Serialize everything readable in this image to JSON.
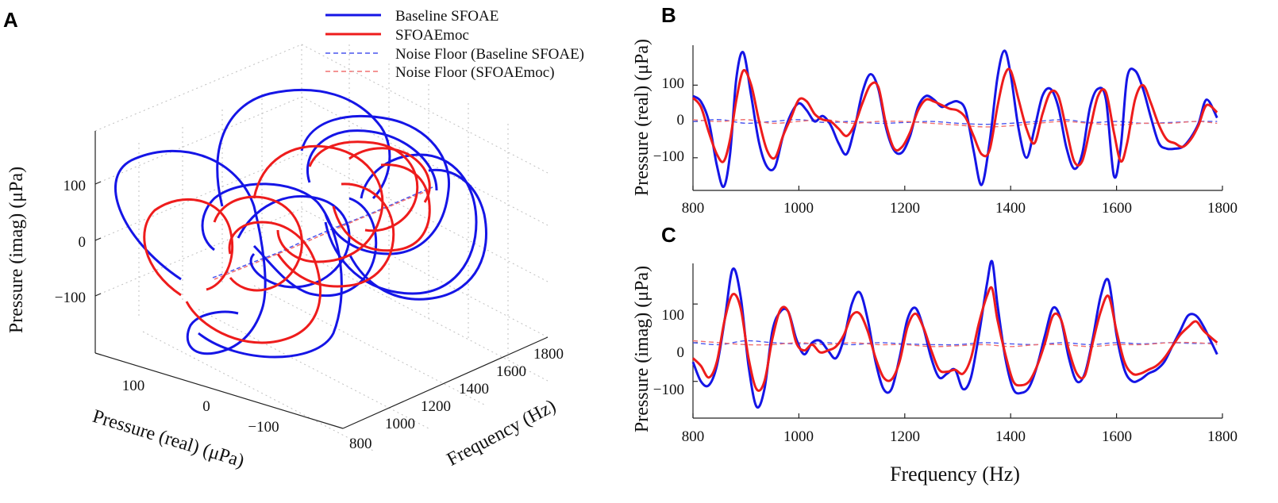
{
  "colors": {
    "baseline": "#1515e6",
    "moc": "#ee1c1c",
    "baseline_noise": "#4a55ee",
    "moc_noise": "#f07070",
    "axis": "#222222",
    "grid": "#c8c8c8"
  },
  "legend": {
    "items": [
      {
        "label": "Baseline SFOAE",
        "style": "solid",
        "color_key": "baseline"
      },
      {
        "label": "SFOAEmoc",
        "style": "solid",
        "color_key": "moc"
      },
      {
        "label": "Noise Floor (Baseline SFOAE)",
        "style": "dashed",
        "color_key": "baseline_noise"
      },
      {
        "label": "Noise Floor (SFOAEmoc)",
        "style": "dashed",
        "color_key": "moc_noise"
      }
    ]
  },
  "chart_data": [
    {
      "panel": "A",
      "type": "line3d",
      "zlabel": "Pressure (imag) (μPa)",
      "xlabel": "Pressure (real) (μPa)",
      "ylabel": "Frequency (Hz)",
      "z_ticks": [
        "100",
        "0",
        "−100"
      ],
      "x_ticks": [
        "100",
        "0",
        "−100"
      ],
      "y_ticks": [
        "800",
        "1000",
        "1200",
        "1400",
        "1600",
        "1800"
      ],
      "xlim": [
        -200,
        200
      ],
      "ylim": [
        800,
        1800
      ],
      "zlim": [
        -200,
        200
      ]
    },
    {
      "panel": "B",
      "type": "line",
      "xlabel": "",
      "ylabel": "Pressure (real) (μPa)",
      "x_ticks": [
        "800",
        "1000",
        "1200",
        "1400",
        "1600",
        "1800"
      ],
      "y_ticks": [
        "100",
        "0",
        "−100"
      ],
      "xlim": [
        800,
        1800
      ],
      "ylim": [
        -190,
        210
      ],
      "series": [
        {
          "name": "Baseline SFOAE",
          "x": [
            800,
            815,
            830,
            845,
            858,
            870,
            882,
            895,
            910,
            925,
            940,
            955,
            970,
            985,
            1000,
            1015,
            1030,
            1045,
            1060,
            1075,
            1090,
            1105,
            1120,
            1135,
            1150,
            1165,
            1180,
            1195,
            1210,
            1225,
            1240,
            1255,
            1270,
            1285,
            1300,
            1315,
            1330,
            1345,
            1360,
            1375,
            1388,
            1400,
            1415,
            1430,
            1445,
            1460,
            1475,
            1490,
            1505,
            1520,
            1535,
            1550,
            1565,
            1580,
            1595,
            1608,
            1620,
            1635,
            1650,
            1665,
            1680,
            1695,
            1710,
            1725,
            1740,
            1755,
            1770,
            1790
          ],
          "values": [
            70,
            55,
            0,
            -120,
            -180,
            -90,
            120,
            190,
            70,
            -60,
            -125,
            -125,
            -40,
            20,
            50,
            30,
            0,
            15,
            -10,
            -60,
            -90,
            -20,
            80,
            130,
            90,
            -20,
            -80,
            -85,
            -40,
            40,
            70,
            60,
            40,
            50,
            55,
            30,
            -80,
            -175,
            -60,
            120,
            195,
            130,
            -20,
            -100,
            -20,
            70,
            90,
            40,
            -70,
            -130,
            -90,
            40,
            90,
            60,
            -150,
            -70,
            120,
            140,
            90,
            10,
            -60,
            -75,
            -75,
            -70,
            -45,
            -5,
            60,
            10
          ]
        },
        {
          "name": "SFOAEmoc",
          "x": [
            800,
            815,
            830,
            845,
            858,
            870,
            882,
            895,
            910,
            925,
            940,
            955,
            970,
            985,
            1000,
            1015,
            1030,
            1045,
            1060,
            1075,
            1090,
            1105,
            1120,
            1135,
            1150,
            1165,
            1180,
            1195,
            1210,
            1225,
            1240,
            1255,
            1270,
            1285,
            1300,
            1315,
            1330,
            1345,
            1360,
            1375,
            1388,
            1400,
            1415,
            1430,
            1445,
            1460,
            1475,
            1490,
            1505,
            1520,
            1535,
            1550,
            1565,
            1580,
            1595,
            1608,
            1620,
            1635,
            1650,
            1665,
            1680,
            1695,
            1710,
            1725,
            1740,
            1755,
            1770,
            1790
          ],
          "values": [
            65,
            40,
            -30,
            -90,
            -110,
            -50,
            60,
            140,
            100,
            0,
            -80,
            -100,
            -40,
            10,
            60,
            55,
            20,
            5,
            0,
            -20,
            -40,
            -10,
            50,
            100,
            95,
            -10,
            -75,
            -70,
            -30,
            30,
            60,
            55,
            45,
            35,
            30,
            10,
            -40,
            -90,
            -80,
            40,
            125,
            140,
            60,
            -20,
            -60,
            20,
            80,
            70,
            -20,
            -110,
            -110,
            -20,
            70,
            80,
            -30,
            -110,
            -60,
            60,
            100,
            50,
            -10,
            -50,
            -60,
            -70,
            -50,
            -10,
            45,
            25
          ]
        },
        {
          "name": "Noise Floor (Baseline SFOAE)",
          "x": [
            800,
            850,
            900,
            950,
            1000,
            1050,
            1100,
            1150,
            1200,
            1250,
            1300,
            1350,
            1400,
            1450,
            1500,
            1550,
            1600,
            1650,
            1700,
            1750,
            1790
          ],
          "values": [
            0,
            5,
            -5,
            0,
            5,
            -3,
            0,
            -5,
            -3,
            0,
            -5,
            -8,
            -5,
            0,
            5,
            -3,
            0,
            -5,
            -3,
            0,
            0
          ]
        },
        {
          "name": "Noise Floor (SFOAEmoc)",
          "x": [
            800,
            850,
            900,
            950,
            1000,
            1050,
            1100,
            1150,
            1200,
            1250,
            1300,
            1350,
            1400,
            1450,
            1500,
            1550,
            1600,
            1650,
            1700,
            1750,
            1790
          ],
          "values": [
            5,
            0,
            5,
            -5,
            0,
            5,
            -5,
            0,
            0,
            -5,
            -10,
            -15,
            -12,
            -5,
            0,
            -5,
            -10,
            -5,
            -5,
            0,
            -5
          ]
        }
      ]
    },
    {
      "panel": "C",
      "type": "line",
      "xlabel": "Frequency (Hz)",
      "ylabel": "Pressure (imag) (μPa)",
      "x_ticks": [
        "800",
        "1000",
        "1200",
        "1400",
        "1600",
        "1800"
      ],
      "y_ticks": [
        "100",
        "0",
        "−100"
      ],
      "xlim": [
        800,
        1800
      ],
      "ylim": [
        -195,
        205
      ],
      "series": [
        {
          "name": "Baseline SFOAE",
          "x": [
            800,
            815,
            830,
            845,
            860,
            875,
            890,
            905,
            920,
            935,
            950,
            965,
            980,
            995,
            1010,
            1025,
            1040,
            1055,
            1070,
            1085,
            1100,
            1115,
            1130,
            1145,
            1160,
            1175,
            1190,
            1205,
            1220,
            1235,
            1250,
            1265,
            1280,
            1295,
            1310,
            1325,
            1340,
            1355,
            1365,
            1375,
            1390,
            1405,
            1420,
            1435,
            1450,
            1465,
            1480,
            1495,
            1510,
            1525,
            1540,
            1555,
            1570,
            1585,
            1600,
            1615,
            1630,
            1645,
            1660,
            1675,
            1690,
            1705,
            1720,
            1735,
            1750,
            1765,
            1790
          ],
          "values": [
            -50,
            -100,
            -110,
            -60,
            60,
            190,
            120,
            -60,
            -165,
            -120,
            30,
            80,
            80,
            10,
            -30,
            0,
            5,
            -20,
            -40,
            10,
            100,
            130,
            60,
            -50,
            -120,
            -120,
            -40,
            60,
            90,
            40,
            -40,
            -90,
            -80,
            -70,
            -120,
            -90,
            20,
            150,
            210,
            100,
            -40,
            -120,
            -130,
            -115,
            -60,
            20,
            90,
            60,
            -40,
            -100,
            -80,
            10,
            120,
            160,
            20,
            -70,
            -100,
            -95,
            -80,
            -70,
            -50,
            -10,
            30,
            70,
            70,
            40,
            -30
          ]
        },
        {
          "name": "SFOAEmoc",
          "x": [
            800,
            815,
            830,
            845,
            860,
            875,
            890,
            905,
            920,
            935,
            950,
            965,
            980,
            995,
            1010,
            1025,
            1040,
            1055,
            1070,
            1085,
            1100,
            1115,
            1130,
            1145,
            1160,
            1175,
            1190,
            1205,
            1220,
            1235,
            1250,
            1265,
            1280,
            1295,
            1310,
            1325,
            1340,
            1355,
            1365,
            1375,
            1390,
            1405,
            1420,
            1435,
            1450,
            1465,
            1480,
            1495,
            1510,
            1525,
            1540,
            1555,
            1570,
            1585,
            1600,
            1615,
            1630,
            1645,
            1660,
            1675,
            1690,
            1705,
            1720,
            1735,
            1750,
            1765,
            1790
          ],
          "values": [
            -40,
            -60,
            -90,
            -50,
            60,
            125,
            90,
            -40,
            -120,
            -100,
            10,
            85,
            80,
            0,
            -20,
            -5,
            -25,
            -20,
            -10,
            20,
            70,
            75,
            30,
            -40,
            -90,
            -95,
            -50,
            40,
            75,
            40,
            -20,
            -70,
            -75,
            -70,
            -80,
            -40,
            50,
            120,
            140,
            60,
            -30,
            -100,
            -110,
            -100,
            -60,
            0,
            70,
            60,
            -20,
            -80,
            -85,
            0,
            80,
            120,
            30,
            -50,
            -80,
            -80,
            -70,
            -60,
            -40,
            -10,
            20,
            40,
            55,
            30,
            0
          ]
        },
        {
          "name": "Noise Floor (Baseline SFOAE)",
          "x": [
            800,
            850,
            900,
            950,
            1000,
            1050,
            1100,
            1150,
            1200,
            1250,
            1300,
            1350,
            1400,
            1450,
            1500,
            1550,
            1600,
            1650,
            1700,
            1750,
            1790
          ],
          "values": [
            0,
            -5,
            5,
            0,
            -3,
            0,
            -5,
            0,
            -3,
            -5,
            -5,
            0,
            -3,
            -5,
            0,
            -5,
            0,
            -3,
            0,
            -2,
            0
          ]
        },
        {
          "name": "Noise Floor (SFOAEmoc)",
          "x": [
            800,
            850,
            900,
            950,
            1000,
            1050,
            1100,
            1150,
            1200,
            1250,
            1300,
            1350,
            1400,
            1450,
            1500,
            1550,
            1600,
            1650,
            1700,
            1750,
            1790
          ],
          "values": [
            5,
            0,
            -5,
            -5,
            0,
            -5,
            0,
            -5,
            -5,
            -10,
            -8,
            -5,
            -10,
            -5,
            -5,
            -10,
            -5,
            -5,
            0,
            0,
            -5
          ]
        }
      ]
    }
  ],
  "panel_letters": {
    "a": "A",
    "b": "B",
    "c": "C"
  }
}
